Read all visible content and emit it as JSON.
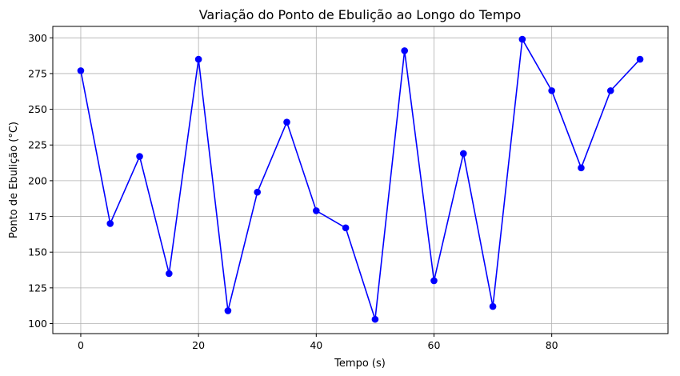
{
  "chart_data": {
    "type": "line",
    "title": "Variação do Ponto de Ebulição ao Longo do Tempo",
    "xlabel": "Tempo (s)",
    "ylabel": "Ponto de Ebulição (°C)",
    "xlim": [
      -4.75,
      99.75
    ],
    "ylim": [
      93,
      308
    ],
    "xticks": [
      0,
      20,
      40,
      60,
      80
    ],
    "yticks": [
      100,
      125,
      150,
      175,
      200,
      225,
      250,
      275,
      300
    ],
    "grid": true,
    "series": [
      {
        "color": "#0000ff",
        "marker": "circle",
        "x": [
          0,
          5,
          10,
          15,
          20,
          25,
          30,
          35,
          40,
          45,
          50,
          55,
          60,
          65,
          70,
          75,
          80,
          85,
          90,
          95
        ],
        "y": [
          277,
          170,
          217,
          135,
          285,
          109,
          192,
          241,
          179,
          167,
          103,
          291,
          130,
          219,
          112,
          299,
          263,
          209,
          263,
          285
        ]
      }
    ]
  }
}
